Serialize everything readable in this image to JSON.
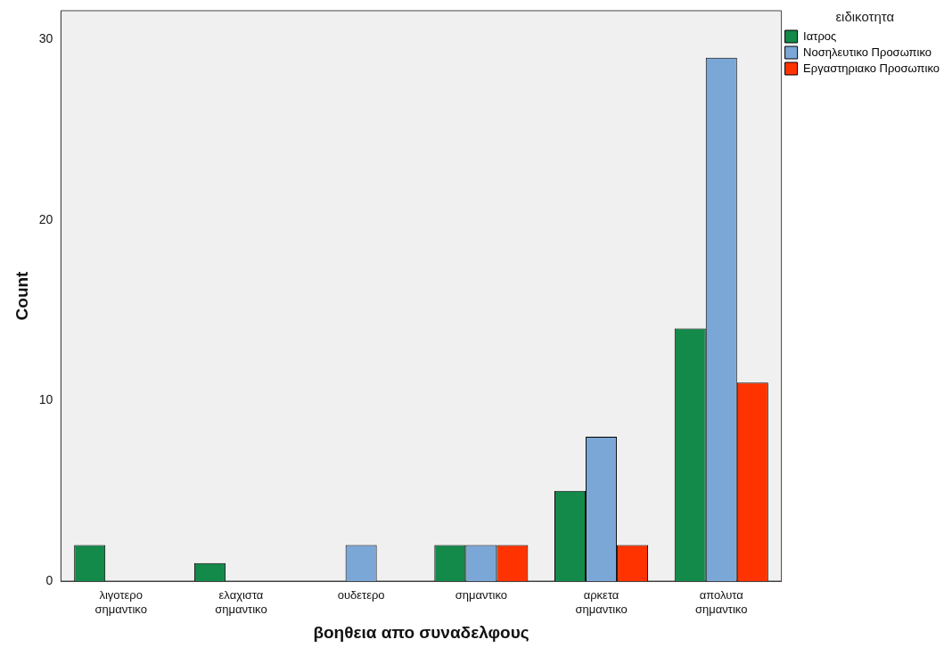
{
  "chart_data": {
    "type": "bar",
    "xlabel": "βοηθεια απο συναδελφους",
    "ylabel": "Count",
    "legend_title": "ειδικοτητα",
    "legend": "top right",
    "grid": false,
    "categories": [
      "λιγοτερο σημαντικο",
      "ελαχιστα σημαντικο",
      "ουδετερο",
      "σημαντικο",
      "αρκετα σημαντικο",
      "απολυτα σημαντικο"
    ],
    "series": [
      {
        "name": "Ιατρος",
        "color": "#138a4a",
        "values": [
          2,
          1,
          0,
          2,
          5,
          14
        ]
      },
      {
        "name": "Νοσηλευτικο Προσωπικο",
        "color": "#7ba7d7",
        "values": [
          0,
          0,
          2,
          2,
          8,
          29
        ]
      },
      {
        "name": "Εργαστηριακο Προσωπικο",
        "color": "#ff3300",
        "values": [
          0,
          0,
          0,
          2,
          2,
          11
        ]
      }
    ],
    "ylim": [
      0,
      31.6
    ],
    "yticks": [
      0,
      10,
      20,
      30
    ]
  }
}
